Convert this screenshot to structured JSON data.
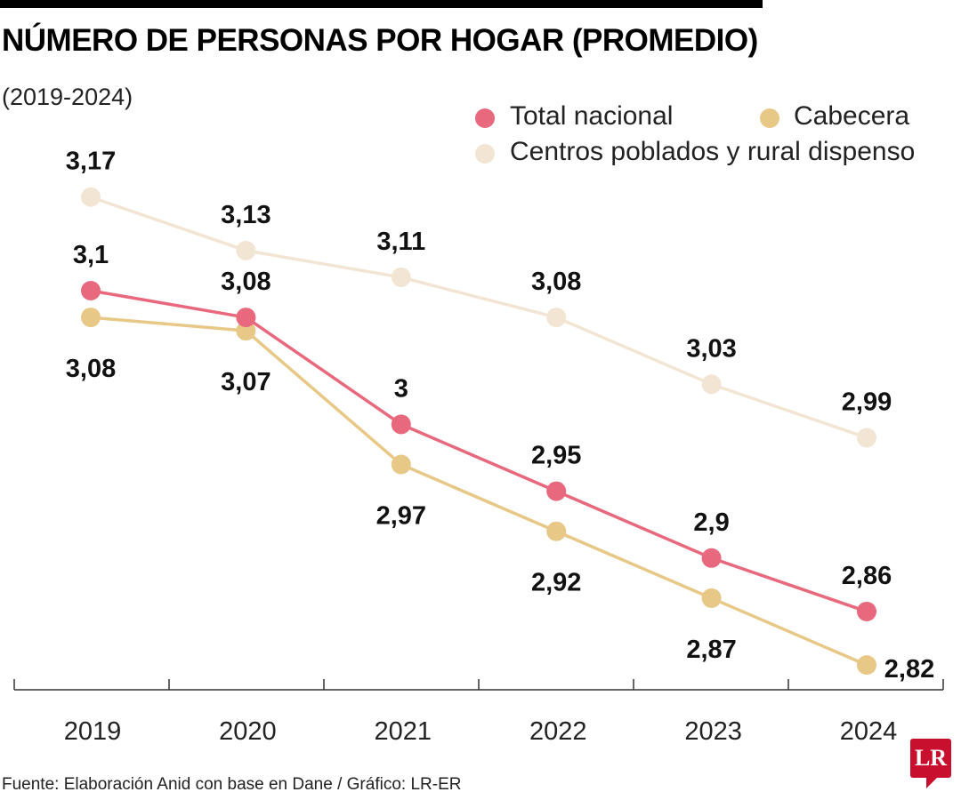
{
  "chart_data": {
    "type": "line",
    "title": "NÚMERO DE PERSONAS POR HOGAR (PROMEDIO)",
    "subtitle": "(2019-2024)",
    "categories": [
      "2019",
      "2020",
      "2021",
      "2022",
      "2023",
      "2024"
    ],
    "series": [
      {
        "name": "Total nacional",
        "color": "#e8697d",
        "values": [
          3.1,
          3.08,
          3.0,
          2.95,
          2.9,
          2.86
        ],
        "labels": [
          "3,1",
          "3,08",
          "3",
          "2,95",
          "2,9",
          "2,86"
        ]
      },
      {
        "name": "Cabecera",
        "color": "#e8c887",
        "values": [
          3.08,
          3.07,
          2.97,
          2.92,
          2.87,
          2.82
        ],
        "labels": [
          "3,08",
          "3,07",
          "2,97",
          "2,92",
          "2,87",
          "2,82"
        ]
      },
      {
        "name": "Centros poblados y rural dispenso",
        "color": "#f3e5d3",
        "values": [
          3.17,
          3.13,
          3.11,
          3.08,
          3.03,
          2.99
        ],
        "labels": [
          "3,17",
          "3,13",
          "3,11",
          "3,08",
          "3,03",
          "2,99"
        ]
      }
    ],
    "legend": "top-right",
    "grid": false,
    "source": "Fuente: Elaboración Anid con base en Dane / Gráfico: LR-ER"
  },
  "logo": "LR"
}
